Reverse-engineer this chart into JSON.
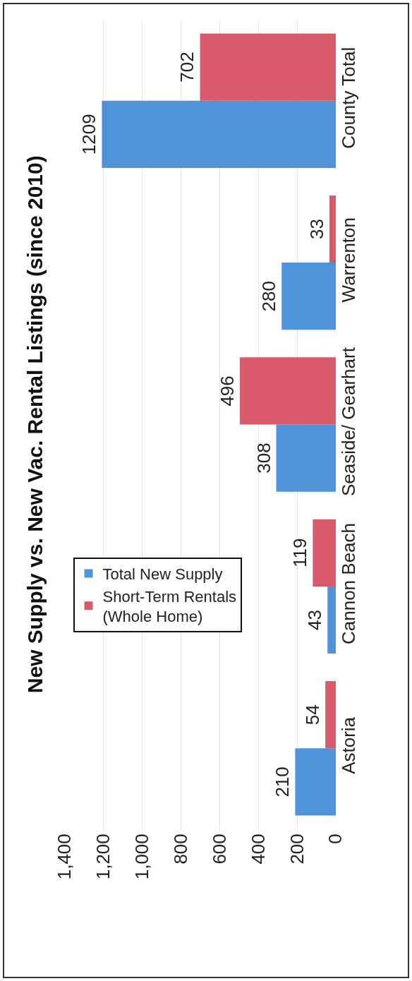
{
  "chart_data": {
    "type": "bar",
    "orientation": "horizontal",
    "title": "New Supply vs. New Vac. Rental Listings (since 2010)",
    "categories": [
      "County Total",
      "Warrenton",
      "Seaside/ Gearhart",
      "Cannon Beach",
      "Astoria"
    ],
    "series": [
      {
        "name": "Total New Supply",
        "color": "#4f93d8",
        "values": [
          1209,
          280,
          308,
          43,
          210
        ]
      },
      {
        "name": "Short-Term Rentals (Whole Home)",
        "color": "#d95b6b",
        "values": [
          702,
          33,
          496,
          119,
          54
        ]
      }
    ],
    "xlim": [
      1400,
      0
    ],
    "xticks": [
      {
        "value": 1400,
        "label": "1,400"
      },
      {
        "value": 1200,
        "label": "1,200"
      },
      {
        "value": 1000,
        "label": "1,000"
      },
      {
        "value": 800,
        "label": "800"
      },
      {
        "value": 600,
        "label": "600"
      },
      {
        "value": 400,
        "label": "400"
      },
      {
        "value": 200,
        "label": "200"
      },
      {
        "value": 0,
        "label": "0"
      }
    ],
    "grid": "x",
    "legend": "bottom left",
    "data_labels": true
  }
}
